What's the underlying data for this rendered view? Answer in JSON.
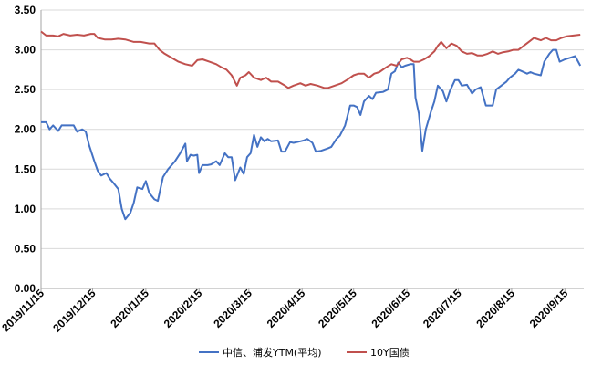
{
  "chart_data": {
    "type": "line",
    "title": "",
    "xlabel": "",
    "ylabel": "",
    "ylim": [
      0,
      3.5
    ],
    "yticks": [
      "0.00",
      "0.50",
      "1.00",
      "1.50",
      "2.00",
      "2.50",
      "3.00",
      "3.50"
    ],
    "xticks": [
      "2019/11/15",
      "2019/12/15",
      "2020/1/15",
      "2020/2/15",
      "2020/3/15",
      "2020/4/15",
      "2020/5/15",
      "2020/6/15",
      "2020/7/15",
      "2020/8/15",
      "2020/9/15"
    ],
    "grid": true,
    "legend_position": "bottom",
    "series": [
      {
        "name": "中信、浦发YTM(平均)",
        "color": "#4472C4",
        "points": [
          [
            "2019/11/15",
            2.09
          ],
          [
            "2019/11/18",
            2.09
          ],
          [
            "2019/11/20",
            2.0
          ],
          [
            "2019/11/22",
            2.05
          ],
          [
            "2019/11/25",
            1.98
          ],
          [
            "2019/11/27",
            2.05
          ],
          [
            "2019/12/2",
            2.05
          ],
          [
            "2019/12/4",
            2.05
          ],
          [
            "2019/12/6",
            1.97
          ],
          [
            "2019/12/9",
            2.0
          ],
          [
            "2019/12/11",
            1.97
          ],
          [
            "2019/12/13",
            1.8
          ],
          [
            "2019/12/16",
            1.6
          ],
          [
            "2019/12/18",
            1.48
          ],
          [
            "2019/12/20",
            1.42
          ],
          [
            "2019/12/23",
            1.45
          ],
          [
            "2019/12/25",
            1.38
          ],
          [
            "2019/12/27",
            1.33
          ],
          [
            "2019/12/30",
            1.25
          ],
          [
            "2020/1/1",
            1.0
          ],
          [
            "2020/1/3",
            0.87
          ],
          [
            "2020/1/6",
            0.95
          ],
          [
            "2020/1/8",
            1.08
          ],
          [
            "2020/1/10",
            1.27
          ],
          [
            "2020/1/13",
            1.25
          ],
          [
            "2020/1/15",
            1.35
          ],
          [
            "2020/1/17",
            1.2
          ],
          [
            "2020/1/20",
            1.12
          ],
          [
            "2020/1/22",
            1.1
          ],
          [
            "2020/1/25",
            1.4
          ],
          [
            "2020/1/28",
            1.5
          ],
          [
            "2020/2/1",
            1.6
          ],
          [
            "2020/2/4",
            1.7
          ],
          [
            "2020/2/7",
            1.82
          ],
          [
            "2020/2/8",
            1.6
          ],
          [
            "2020/2/10",
            1.68
          ],
          [
            "2020/2/12",
            1.67
          ],
          [
            "2020/2/14",
            1.68
          ],
          [
            "2020/2/15",
            1.45
          ],
          [
            "2020/2/17",
            1.55
          ],
          [
            "2020/2/20",
            1.55
          ],
          [
            "2020/2/22",
            1.56
          ],
          [
            "2020/2/25",
            1.6
          ],
          [
            "2020/2/27",
            1.55
          ],
          [
            "2020/3/1",
            1.7
          ],
          [
            "2020/3/3",
            1.65
          ],
          [
            "2020/3/5",
            1.65
          ],
          [
            "2020/3/7",
            1.36
          ],
          [
            "2020/3/10",
            1.52
          ],
          [
            "2020/3/12",
            1.44
          ],
          [
            "2020/3/14",
            1.65
          ],
          [
            "2020/3/16",
            1.7
          ],
          [
            "2020/3/18",
            1.93
          ],
          [
            "2020/3/20",
            1.78
          ],
          [
            "2020/3/22",
            1.9
          ],
          [
            "2020/3/24",
            1.85
          ],
          [
            "2020/3/26",
            1.88
          ],
          [
            "2020/3/28",
            1.85
          ],
          [
            "2020/4/1",
            1.86
          ],
          [
            "2020/4/3",
            1.72
          ],
          [
            "2020/4/5",
            1.72
          ],
          [
            "2020/4/8",
            1.84
          ],
          [
            "2020/4/10",
            1.83
          ],
          [
            "2020/4/14",
            1.85
          ],
          [
            "2020/4/16",
            1.86
          ],
          [
            "2020/4/18",
            1.88
          ],
          [
            "2020/4/21",
            1.83
          ],
          [
            "2020/4/23",
            1.72
          ],
          [
            "2020/4/26",
            1.73
          ],
          [
            "2020/4/30",
            1.76
          ],
          [
            "2020/5/2",
            1.78
          ],
          [
            "2020/5/5",
            1.88
          ],
          [
            "2020/5/7",
            1.92
          ],
          [
            "2020/5/10",
            2.05
          ],
          [
            "2020/5/13",
            2.3
          ],
          [
            "2020/5/15",
            2.3
          ],
          [
            "2020/5/17",
            2.28
          ],
          [
            "2020/5/19",
            2.18
          ],
          [
            "2020/5/21",
            2.35
          ],
          [
            "2020/5/24",
            2.42
          ],
          [
            "2020/5/26",
            2.38
          ],
          [
            "2020/5/28",
            2.46
          ],
          [
            "2020/6/1",
            2.47
          ],
          [
            "2020/6/4",
            2.5
          ],
          [
            "2020/6/6",
            2.7
          ],
          [
            "2020/6/8",
            2.73
          ],
          [
            "2020/6/10",
            2.84
          ],
          [
            "2020/6/12",
            2.78
          ],
          [
            "2020/6/14",
            2.8
          ],
          [
            "2020/6/17",
            2.82
          ],
          [
            "2020/6/19",
            2.82
          ],
          [
            "2020/6/20",
            2.4
          ],
          [
            "2020/6/22",
            2.2
          ],
          [
            "2020/6/24",
            1.73
          ],
          [
            "2020/6/26",
            2.0
          ],
          [
            "2020/6/29",
            2.22
          ],
          [
            "2020/7/1",
            2.35
          ],
          [
            "2020/7/3",
            2.55
          ],
          [
            "2020/7/6",
            2.48
          ],
          [
            "2020/7/8",
            2.35
          ],
          [
            "2020/7/10",
            2.48
          ],
          [
            "2020/7/13",
            2.62
          ],
          [
            "2020/7/15",
            2.62
          ],
          [
            "2020/7/17",
            2.55
          ],
          [
            "2020/7/20",
            2.56
          ],
          [
            "2020/7/23",
            2.45
          ],
          [
            "2020/7/25",
            2.5
          ],
          [
            "2020/7/28",
            2.53
          ],
          [
            "2020/7/31",
            2.3
          ],
          [
            "2020/8/4",
            2.3
          ],
          [
            "2020/8/6",
            2.5
          ],
          [
            "2020/8/9",
            2.55
          ],
          [
            "2020/8/12",
            2.6
          ],
          [
            "2020/8/14",
            2.65
          ],
          [
            "2020/8/17",
            2.7
          ],
          [
            "2020/8/19",
            2.75
          ],
          [
            "2020/8/21",
            2.73
          ],
          [
            "2020/8/24",
            2.7
          ],
          [
            "2020/8/26",
            2.72
          ],
          [
            "2020/8/28",
            2.7
          ],
          [
            "2020/9/1",
            2.68
          ],
          [
            "2020/9/3",
            2.85
          ],
          [
            "2020/9/6",
            2.95
          ],
          [
            "2020/9/8",
            3.0
          ],
          [
            "2020/9/10",
            3.0
          ],
          [
            "2020/9/12",
            2.85
          ],
          [
            "2020/9/15",
            2.88
          ],
          [
            "2020/9/18",
            2.9
          ],
          [
            "2020/9/21",
            2.92
          ],
          [
            "2020/9/24",
            2.8
          ]
        ]
      },
      {
        "name": "10Y国债",
        "color": "#C0504D",
        "points": [
          [
            "2019/11/15",
            3.23
          ],
          [
            "2019/11/18",
            3.18
          ],
          [
            "2019/11/22",
            3.18
          ],
          [
            "2019/11/25",
            3.17
          ],
          [
            "2019/11/28",
            3.2
          ],
          [
            "2019/12/2",
            3.18
          ],
          [
            "2019/12/6",
            3.19
          ],
          [
            "2019/12/10",
            3.18
          ],
          [
            "2019/12/14",
            3.2
          ],
          [
            "2019/12/16",
            3.2
          ],
          [
            "2019/12/18",
            3.15
          ],
          [
            "2019/12/22",
            3.13
          ],
          [
            "2019/12/26",
            3.13
          ],
          [
            "2019/12/30",
            3.14
          ],
          [
            "2020/1/3",
            3.13
          ],
          [
            "2020/1/8",
            3.1
          ],
          [
            "2020/1/12",
            3.1
          ],
          [
            "2020/1/17",
            3.08
          ],
          [
            "2020/1/20",
            3.08
          ],
          [
            "2020/1/23",
            3.0
          ],
          [
            "2020/1/26",
            2.95
          ],
          [
            "2020/1/30",
            2.9
          ],
          [
            "2020/2/3",
            2.85
          ],
          [
            "2020/2/7",
            2.82
          ],
          [
            "2020/2/11",
            2.8
          ],
          [
            "2020/2/14",
            2.87
          ],
          [
            "2020/2/17",
            2.88
          ],
          [
            "2020/2/21",
            2.85
          ],
          [
            "2020/2/25",
            2.82
          ],
          [
            "2020/2/28",
            2.78
          ],
          [
            "2020/3/2",
            2.75
          ],
          [
            "2020/3/5",
            2.68
          ],
          [
            "2020/3/8",
            2.55
          ],
          [
            "2020/3/10",
            2.65
          ],
          [
            "2020/3/13",
            2.68
          ],
          [
            "2020/3/15",
            2.72
          ],
          [
            "2020/3/18",
            2.65
          ],
          [
            "2020/3/22",
            2.62
          ],
          [
            "2020/3/25",
            2.65
          ],
          [
            "2020/3/28",
            2.6
          ],
          [
            "2020/4/1",
            2.6
          ],
          [
            "2020/4/5",
            2.55
          ],
          [
            "2020/4/7",
            2.52
          ],
          [
            "2020/4/10",
            2.55
          ],
          [
            "2020/4/14",
            2.58
          ],
          [
            "2020/4/17",
            2.55
          ],
          [
            "2020/4/20",
            2.57
          ],
          [
            "2020/4/24",
            2.55
          ],
          [
            "2020/4/28",
            2.52
          ],
          [
            "2020/4/30",
            2.52
          ],
          [
            "2020/5/4",
            2.55
          ],
          [
            "2020/5/8",
            2.58
          ],
          [
            "2020/5/11",
            2.62
          ],
          [
            "2020/5/15",
            2.68
          ],
          [
            "2020/5/18",
            2.7
          ],
          [
            "2020/5/21",
            2.7
          ],
          [
            "2020/5/24",
            2.65
          ],
          [
            "2020/5/27",
            2.7
          ],
          [
            "2020/5/30",
            2.72
          ],
          [
            "2020/6/3",
            2.78
          ],
          [
            "2020/6/6",
            2.82
          ],
          [
            "2020/6/9",
            2.8
          ],
          [
            "2020/6/12",
            2.88
          ],
          [
            "2020/6/15",
            2.9
          ],
          [
            "2020/6/17",
            2.88
          ],
          [
            "2020/6/19",
            2.85
          ],
          [
            "2020/6/22",
            2.85
          ],
          [
            "2020/6/25",
            2.88
          ],
          [
            "2020/6/28",
            2.92
          ],
          [
            "2020/7/1",
            2.98
          ],
          [
            "2020/7/3",
            3.05
          ],
          [
            "2020/7/5",
            3.1
          ],
          [
            "2020/7/8",
            3.02
          ],
          [
            "2020/7/11",
            3.08
          ],
          [
            "2020/7/14",
            3.05
          ],
          [
            "2020/7/17",
            2.98
          ],
          [
            "2020/7/20",
            2.95
          ],
          [
            "2020/7/23",
            2.96
          ],
          [
            "2020/7/26",
            2.93
          ],
          [
            "2020/7/29",
            2.93
          ],
          [
            "2020/8/1",
            2.95
          ],
          [
            "2020/8/4",
            2.98
          ],
          [
            "2020/8/7",
            2.95
          ],
          [
            "2020/8/10",
            2.97
          ],
          [
            "2020/8/13",
            2.98
          ],
          [
            "2020/8/16",
            3.0
          ],
          [
            "2020/8/19",
            3.0
          ],
          [
            "2020/8/22",
            3.05
          ],
          [
            "2020/8/25",
            3.1
          ],
          [
            "2020/8/28",
            3.15
          ],
          [
            "2020/9/1",
            3.12
          ],
          [
            "2020/9/4",
            3.15
          ],
          [
            "2020/9/7",
            3.12
          ],
          [
            "2020/9/10",
            3.12
          ],
          [
            "2020/9/13",
            3.15
          ],
          [
            "2020/9/16",
            3.17
          ],
          [
            "2020/9/20",
            3.18
          ],
          [
            "2020/9/24",
            3.19
          ]
        ]
      }
    ]
  }
}
